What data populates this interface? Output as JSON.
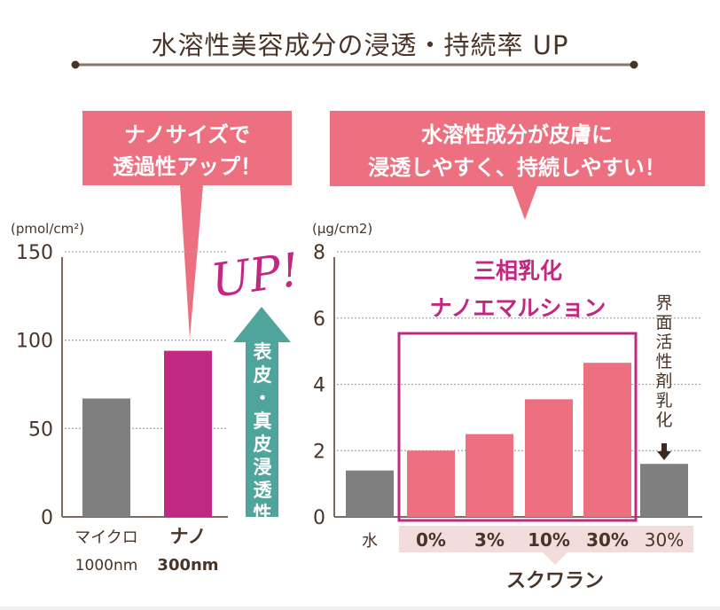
{
  "title": "水溶性美容成分の浸透・持続率 UP",
  "colors": {
    "brown": "#4a3428",
    "pink": "#ec7080",
    "magenta": "#c02882",
    "gray": "#7f7f7f",
    "teal": "#4fa49c",
    "band": "#f3dcdc"
  },
  "left_callout": {
    "line1": "ナノサイズで",
    "line2": "透過性アップ！"
  },
  "right_callout": {
    "line1": "水溶性成分が皮膚に",
    "line2": "浸透しやすく、持続しやすい！"
  },
  "up_mark": "UP!",
  "arrow_label": "表皮・真皮浸透性",
  "box_label": {
    "line1": "三相乳化",
    "line2": "ナノエマルション"
  },
  "surfactant_label": "界面活性剤乳化",
  "squalane_label": "スクワラン",
  "chart_data": [
    {
      "type": "bar",
      "title": "",
      "ylabel": "(pmol/cm²)",
      "ylim": [
        0,
        150
      ],
      "yticks": [
        0,
        50,
        100,
        150
      ],
      "grid": true,
      "categories": [
        "マイクロ 1000nm",
        "ナノ 300nm"
      ],
      "category_lines": [
        [
          "マイクロ",
          "1000nm"
        ],
        [
          "ナノ",
          "300nm"
        ]
      ],
      "values": [
        67,
        94
      ],
      "bar_colors": [
        "#7f7f7f",
        "#c02882"
      ]
    },
    {
      "type": "bar",
      "title": "",
      "ylabel": "(μg/cm2)",
      "ylim": [
        0,
        8
      ],
      "yticks": [
        0,
        2,
        4,
        6,
        8
      ],
      "grid": true,
      "categories": [
        "水",
        "0%",
        "3%",
        "10%",
        "30%",
        "30%"
      ],
      "group_note": "0%–30% (pink) = スクワラン 三相乳化ナノエマルション; last 30% = 界面活性剤乳化",
      "values": [
        1.4,
        2.0,
        2.5,
        3.55,
        4.65,
        1.6
      ],
      "bar_colors": [
        "#7f7f7f",
        "#ec7080",
        "#ec7080",
        "#ec7080",
        "#ec7080",
        "#7f7f7f"
      ]
    }
  ]
}
